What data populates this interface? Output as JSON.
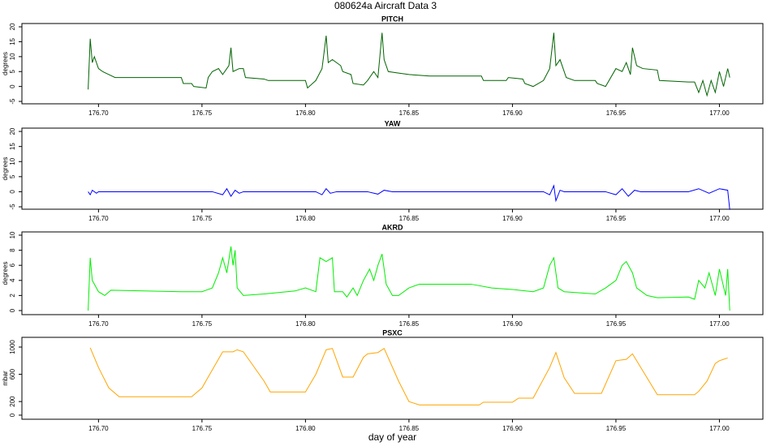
{
  "title": "080624a    Aircraft Data 3",
  "chart_data": [
    {
      "type": "line",
      "title": "PITCH",
      "ylabel": "degrees",
      "color": "#006400",
      "xlim": [
        176.663,
        177.021
      ],
      "ylim": [
        -5.8,
        21.1
      ],
      "yticks": [
        -5,
        0,
        5,
        10,
        15,
        20
      ],
      "xticks": [
        {
          "value": 176.7,
          "label": "176.70"
        },
        176.75,
        {
          "value": 176.8,
          "label": "176.80"
        },
        176.85,
        {
          "value": 176.9,
          "label": "176.90"
        },
        176.95,
        {
          "value": 177,
          "label": "177.00"
        }
      ],
      "x": [
        176.695,
        176.696,
        176.697,
        176.698,
        176.7,
        176.702,
        176.705,
        176.708,
        176.74,
        176.741,
        176.745,
        176.746,
        176.752,
        176.753,
        176.755,
        176.758,
        176.76,
        176.763,
        176.764,
        176.765,
        176.768,
        176.77,
        176.771,
        176.78,
        176.782,
        176.8,
        176.801,
        176.805,
        176.808,
        176.81,
        176.811,
        176.813,
        176.817,
        176.818,
        176.822,
        176.823,
        176.828,
        176.83,
        176.833,
        176.835,
        176.837,
        176.838,
        176.84,
        176.845,
        176.85,
        176.86,
        176.885,
        176.886,
        176.897,
        176.898,
        176.905,
        176.906,
        176.91,
        176.915,
        176.918,
        176.92,
        176.921,
        176.923,
        176.926,
        176.93,
        176.94,
        176.941,
        176.945,
        176.95,
        176.953,
        176.955,
        176.957,
        176.958,
        176.96,
        176.963,
        176.97,
        176.971,
        176.985,
        176.988,
        176.99,
        176.992,
        176.994,
        176.996,
        176.998,
        177.0,
        177.002,
        177.004,
        177.005
      ],
      "values": [
        -1,
        16,
        8,
        10,
        6,
        5,
        4,
        3,
        3,
        1,
        1,
        0,
        -0.5,
        3,
        5,
        6,
        4,
        7,
        13,
        5,
        6,
        6,
        3,
        2.5,
        2,
        2,
        -0.5,
        2,
        6,
        17,
        8,
        9,
        7,
        5,
        4,
        1,
        0.5,
        2,
        5,
        3,
        18,
        9,
        5,
        4.5,
        4,
        3.5,
        3.5,
        2,
        2,
        3,
        2.5,
        1,
        0,
        2,
        6,
        18,
        7,
        9,
        3,
        2,
        2,
        1,
        0,
        6,
        5,
        8,
        4,
        13,
        7,
        6,
        5.5,
        2,
        1.5,
        1.5,
        -2,
        2,
        -3,
        2,
        -2,
        5,
        0,
        6,
        3
      ]
    },
    {
      "type": "line",
      "title": "YAW",
      "ylabel": "degrees",
      "color": "#0000ff",
      "xlim": [
        176.663,
        177.021
      ],
      "ylim": [
        -5.8,
        21.1
      ],
      "yticks": [
        -5,
        0,
        5,
        10,
        15,
        20
      ],
      "xticks": [
        {
          "value": 176.7,
          "label": "176.70"
        },
        176.75,
        {
          "value": 176.8,
          "label": "176.80"
        },
        176.85,
        {
          "value": 176.9,
          "label": "176.90"
        },
        176.95,
        {
          "value": 177,
          "label": "177.00"
        }
      ],
      "x": [
        176.695,
        176.696,
        176.697,
        176.699,
        176.7,
        176.755,
        176.76,
        176.762,
        176.764,
        176.766,
        176.768,
        176.77,
        176.805,
        176.808,
        176.81,
        176.812,
        176.815,
        176.83,
        176.835,
        176.838,
        176.842,
        176.915,
        176.918,
        176.92,
        176.921,
        176.923,
        176.925,
        176.945,
        176.95,
        176.953,
        176.956,
        176.959,
        176.962,
        176.985,
        176.99,
        176.995,
        177.0,
        177.004,
        177.005
      ],
      "values": [
        0,
        -1,
        0.5,
        -0.5,
        0,
        0,
        -1,
        1,
        -1.5,
        0.5,
        -0.5,
        0,
        0,
        -1,
        1,
        -0.5,
        0,
        0,
        -0.8,
        0.5,
        0,
        0,
        -1,
        2,
        -3,
        0.5,
        0,
        0,
        -1,
        1,
        -1.5,
        0.5,
        0,
        0,
        1,
        -0.5,
        1,
        0.5,
        -6
      ]
    },
    {
      "type": "line",
      "title": "AKRD",
      "ylabel": "degrees",
      "color": "#00ee00",
      "xlim": [
        176.663,
        177.021
      ],
      "ylim": [
        -0.54,
        10.43
      ],
      "yticks": [
        0,
        2,
        4,
        6,
        8,
        10
      ],
      "xticks": [
        {
          "value": 176.7,
          "label": "176.70"
        },
        176.75,
        {
          "value": 176.8,
          "label": "176.80"
        },
        176.85,
        {
          "value": 176.9,
          "label": "176.90"
        },
        176.95,
        {
          "value": 177,
          "label": "177.00"
        }
      ],
      "x": [
        176.695,
        176.696,
        176.697,
        176.7,
        176.703,
        176.706,
        176.74,
        176.75,
        176.755,
        176.758,
        176.76,
        176.762,
        176.764,
        176.765,
        176.766,
        176.767,
        176.77,
        176.78,
        176.795,
        176.8,
        176.805,
        176.807,
        176.81,
        176.813,
        176.814,
        176.818,
        176.82,
        176.823,
        176.825,
        176.828,
        176.831,
        176.833,
        176.835,
        176.837,
        176.839,
        176.842,
        176.845,
        176.85,
        176.855,
        176.88,
        176.89,
        176.9,
        176.91,
        176.915,
        176.918,
        176.92,
        176.922,
        176.925,
        176.94,
        176.945,
        176.95,
        176.953,
        176.955,
        176.958,
        176.96,
        176.965,
        176.97,
        176.985,
        176.988,
        176.99,
        176.993,
        176.995,
        176.998,
        177.0,
        177.003,
        177.004,
        177.005
      ],
      "values": [
        0,
        7,
        4,
        2.5,
        2,
        2.7,
        2.5,
        2.5,
        3,
        5,
        7,
        5,
        8.5,
        6,
        8,
        3,
        2,
        2.2,
        2.6,
        3,
        2.5,
        7,
        6.5,
        7,
        2.5,
        2.5,
        1.8,
        3,
        2,
        4,
        5.5,
        4,
        6,
        7.5,
        3.5,
        2,
        2,
        3,
        3.5,
        3.5,
        3,
        2.8,
        2.5,
        3,
        6,
        7,
        3,
        2.5,
        2.2,
        3,
        4,
        6,
        6.5,
        5,
        3,
        2,
        1.7,
        1.8,
        1.5,
        4,
        3,
        5,
        2,
        5.5,
        2,
        5.5,
        0
      ]
    },
    {
      "type": "line",
      "title": "PSXC",
      "ylabel": "mbar",
      "xlabel": "day of year",
      "color": "#ffa500",
      "xlim": [
        176.663,
        177.021
      ],
      "ylim": [
        -60,
        1143
      ],
      "yticks": [
        0,
        200,
        600,
        1000
      ],
      "xticks": [
        {
          "value": 176.7,
          "label": "176.70"
        },
        176.75,
        {
          "value": 176.8,
          "label": "176.80"
        },
        176.85,
        {
          "value": 176.9,
          "label": "176.90"
        },
        176.95,
        {
          "value": 177,
          "label": "177.00"
        }
      ],
      "x": [
        176.696,
        176.7,
        176.705,
        176.71,
        176.745,
        176.75,
        176.76,
        176.765,
        176.767,
        176.77,
        176.78,
        176.783,
        176.8,
        176.805,
        176.81,
        176.813,
        176.818,
        176.823,
        176.828,
        176.83,
        176.835,
        176.838,
        176.845,
        176.85,
        176.855,
        176.884,
        176.886,
        176.9,
        176.903,
        176.91,
        176.918,
        176.921,
        176.925,
        176.93,
        176.943,
        176.95,
        176.955,
        176.958,
        176.97,
        176.988,
        176.99,
        176.994,
        176.998,
        177.0,
        177.004
      ],
      "values": [
        990,
        700,
        400,
        270,
        270,
        400,
        930,
        930,
        960,
        930,
        500,
        340,
        340,
        600,
        960,
        980,
        560,
        560,
        850,
        900,
        920,
        980,
        500,
        200,
        150,
        150,
        190,
        190,
        250,
        250,
        700,
        920,
        550,
        320,
        320,
        800,
        820,
        900,
        300,
        300,
        350,
        500,
        760,
        800,
        840
      ]
    }
  ]
}
